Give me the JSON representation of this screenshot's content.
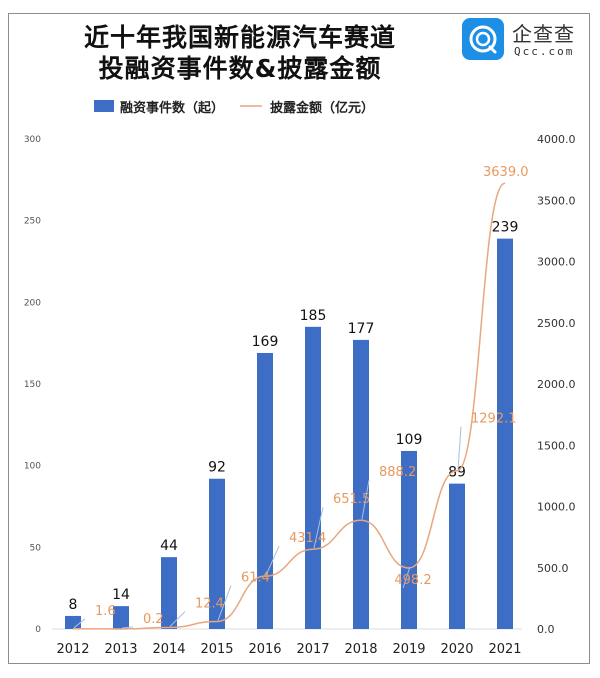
{
  "title": {
    "line1": "近十年我国新能源汽车赛道",
    "line2": "投融资事件数&披露金额"
  },
  "logo": {
    "name": "企查查",
    "domain": "Qcc.com",
    "badge_glyph": "@"
  },
  "legend": {
    "bar_label": "融资事件数（起）",
    "line_label": "披露金额（亿元）"
  },
  "colors": {
    "bar": "#3e6dc6",
    "line": "#e8a77f",
    "line_label": "#e89a5e",
    "leader": "#a9bfe0",
    "logo": "#1e8fe6"
  },
  "chart_data": {
    "type": "bar",
    "title": "近十年我国新能源汽车赛道投融资事件数&披露金额",
    "categories": [
      "2012",
      "2013",
      "2014",
      "2015",
      "2016",
      "2017",
      "2018",
      "2019",
      "2020",
      "2021"
    ],
    "series": [
      {
        "name": "融资事件数（起）",
        "type": "bar",
        "axis": "left",
        "values": [
          8,
          14,
          44,
          92,
          169,
          185,
          177,
          109,
          89,
          239
        ]
      },
      {
        "name": "披露金额（亿元）",
        "type": "line",
        "axis": "right",
        "values": [
          1.6,
          0.2,
          12.4,
          61.4,
          431.4,
          651.5,
          888.2,
          498.2,
          1292.1,
          3639.0
        ]
      }
    ],
    "bar_labels": [
      "8",
      "14",
      "44",
      "92",
      "169",
      "185",
      "177",
      "109",
      "89",
      "239"
    ],
    "line_labels": [
      "1.6",
      "0.2",
      "12.4",
      "61.4",
      "431.4",
      "651.5",
      "888.2",
      "498.2",
      "1292.1",
      "3639.0"
    ],
    "xlabel": "",
    "ylabel": "",
    "ylim": [
      0,
      300
    ],
    "y2lim": [
      0,
      4000
    ],
    "yticks": [
      "0",
      "50",
      "100",
      "150",
      "200",
      "250",
      "300"
    ],
    "y2ticks": [
      "0.0",
      "500.0",
      "1000.0",
      "1500.0",
      "2000.0",
      "2500.0",
      "3000.0",
      "3500.0",
      "4000.0"
    ],
    "grid": false,
    "legend_position": "top"
  }
}
